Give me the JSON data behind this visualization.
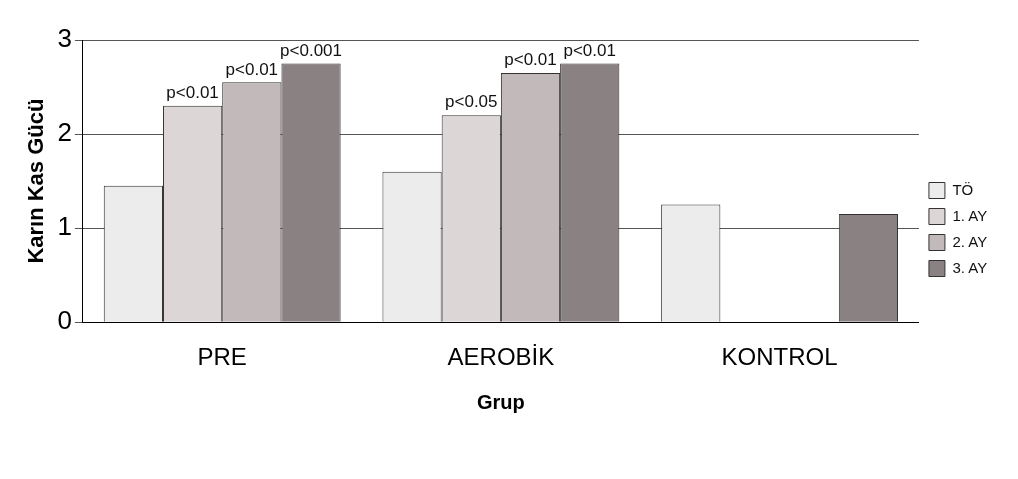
{
  "chart_data": {
    "type": "bar",
    "xlabel": "Grup",
    "ylabel": "Karın Kas Gücü",
    "categories": [
      "PRE",
      "AEROBİK",
      "KONTROL"
    ],
    "series": [
      {
        "name": "TÖ",
        "color": "#ececec",
        "values": [
          1.45,
          1.6,
          1.25
        ]
      },
      {
        "name": "1. AY",
        "color": "#dcd6d6",
        "values": [
          2.3,
          2.2,
          null
        ]
      },
      {
        "name": "2. AY",
        "color": "#c2baba",
        "values": [
          2.55,
          2.65,
          null
        ]
      },
      {
        "name": "3. AY",
        "color": "#8a8282",
        "values": [
          2.75,
          2.75,
          1.15
        ]
      }
    ],
    "ylim": [
      0,
      3
    ],
    "yticks": [
      0,
      1,
      2,
      3
    ],
    "grid": "y",
    "legend": "right",
    "annotations": [
      {
        "text": "p<0.01",
        "x": "PRE",
        "y": 2.3
      },
      {
        "text": "p<0.01",
        "x": "PRE",
        "y": 2.55
      },
      "p<0.001",
      {
        "text": "p<0.05",
        "x": "AEROBİK",
        "y": 2.2
      },
      {
        "text": "p<0.01",
        "x": "AEROBİK",
        "y": 2.65
      },
      "p<0.01"
    ]
  }
}
